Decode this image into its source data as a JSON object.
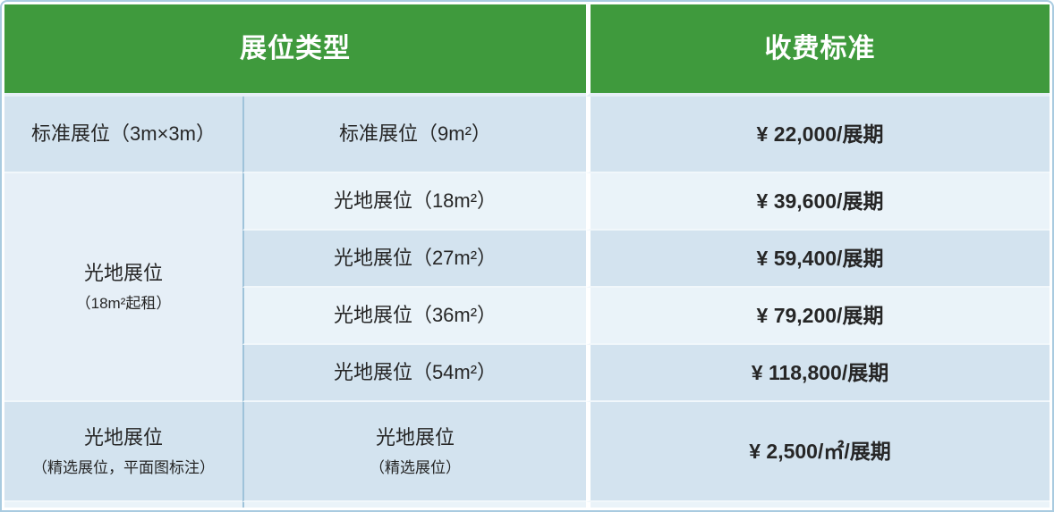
{
  "table": {
    "header": {
      "booth_type": "展位类型",
      "fee_standard": "收费标准"
    },
    "standard_row": {
      "category": "标准展位（3m×3m）",
      "spec": "标准展位（9m²）",
      "price": "¥ 22,000/展期"
    },
    "open_group": {
      "category": "光地展位",
      "note": "（18m²起租）",
      "items": [
        {
          "spec": "光地展位（18m²）",
          "price": "¥ 39,600/展期"
        },
        {
          "spec": "光地展位（27m²）",
          "price": "¥ 59,400/展期"
        },
        {
          "spec": "光地展位（36m²）",
          "price": "¥ 79,200/展期"
        },
        {
          "spec": "光地展位（54m²）",
          "price": "¥ 118,800/展期"
        }
      ]
    },
    "featured_row": {
      "category": "光地展位",
      "category_note": "（精选展位，平面图标注）",
      "spec": "光地展位",
      "spec_note": "（精选展位）",
      "price": "¥ 2,500/㎡/展期"
    }
  },
  "colors": {
    "header_green": "#3f9a3d",
    "row_dark": "#d3e3ef",
    "row_light": "#eaf3f9",
    "merged_cell": "#e6eff7",
    "divider_blue": "#9fc3da",
    "text": "#262626"
  }
}
